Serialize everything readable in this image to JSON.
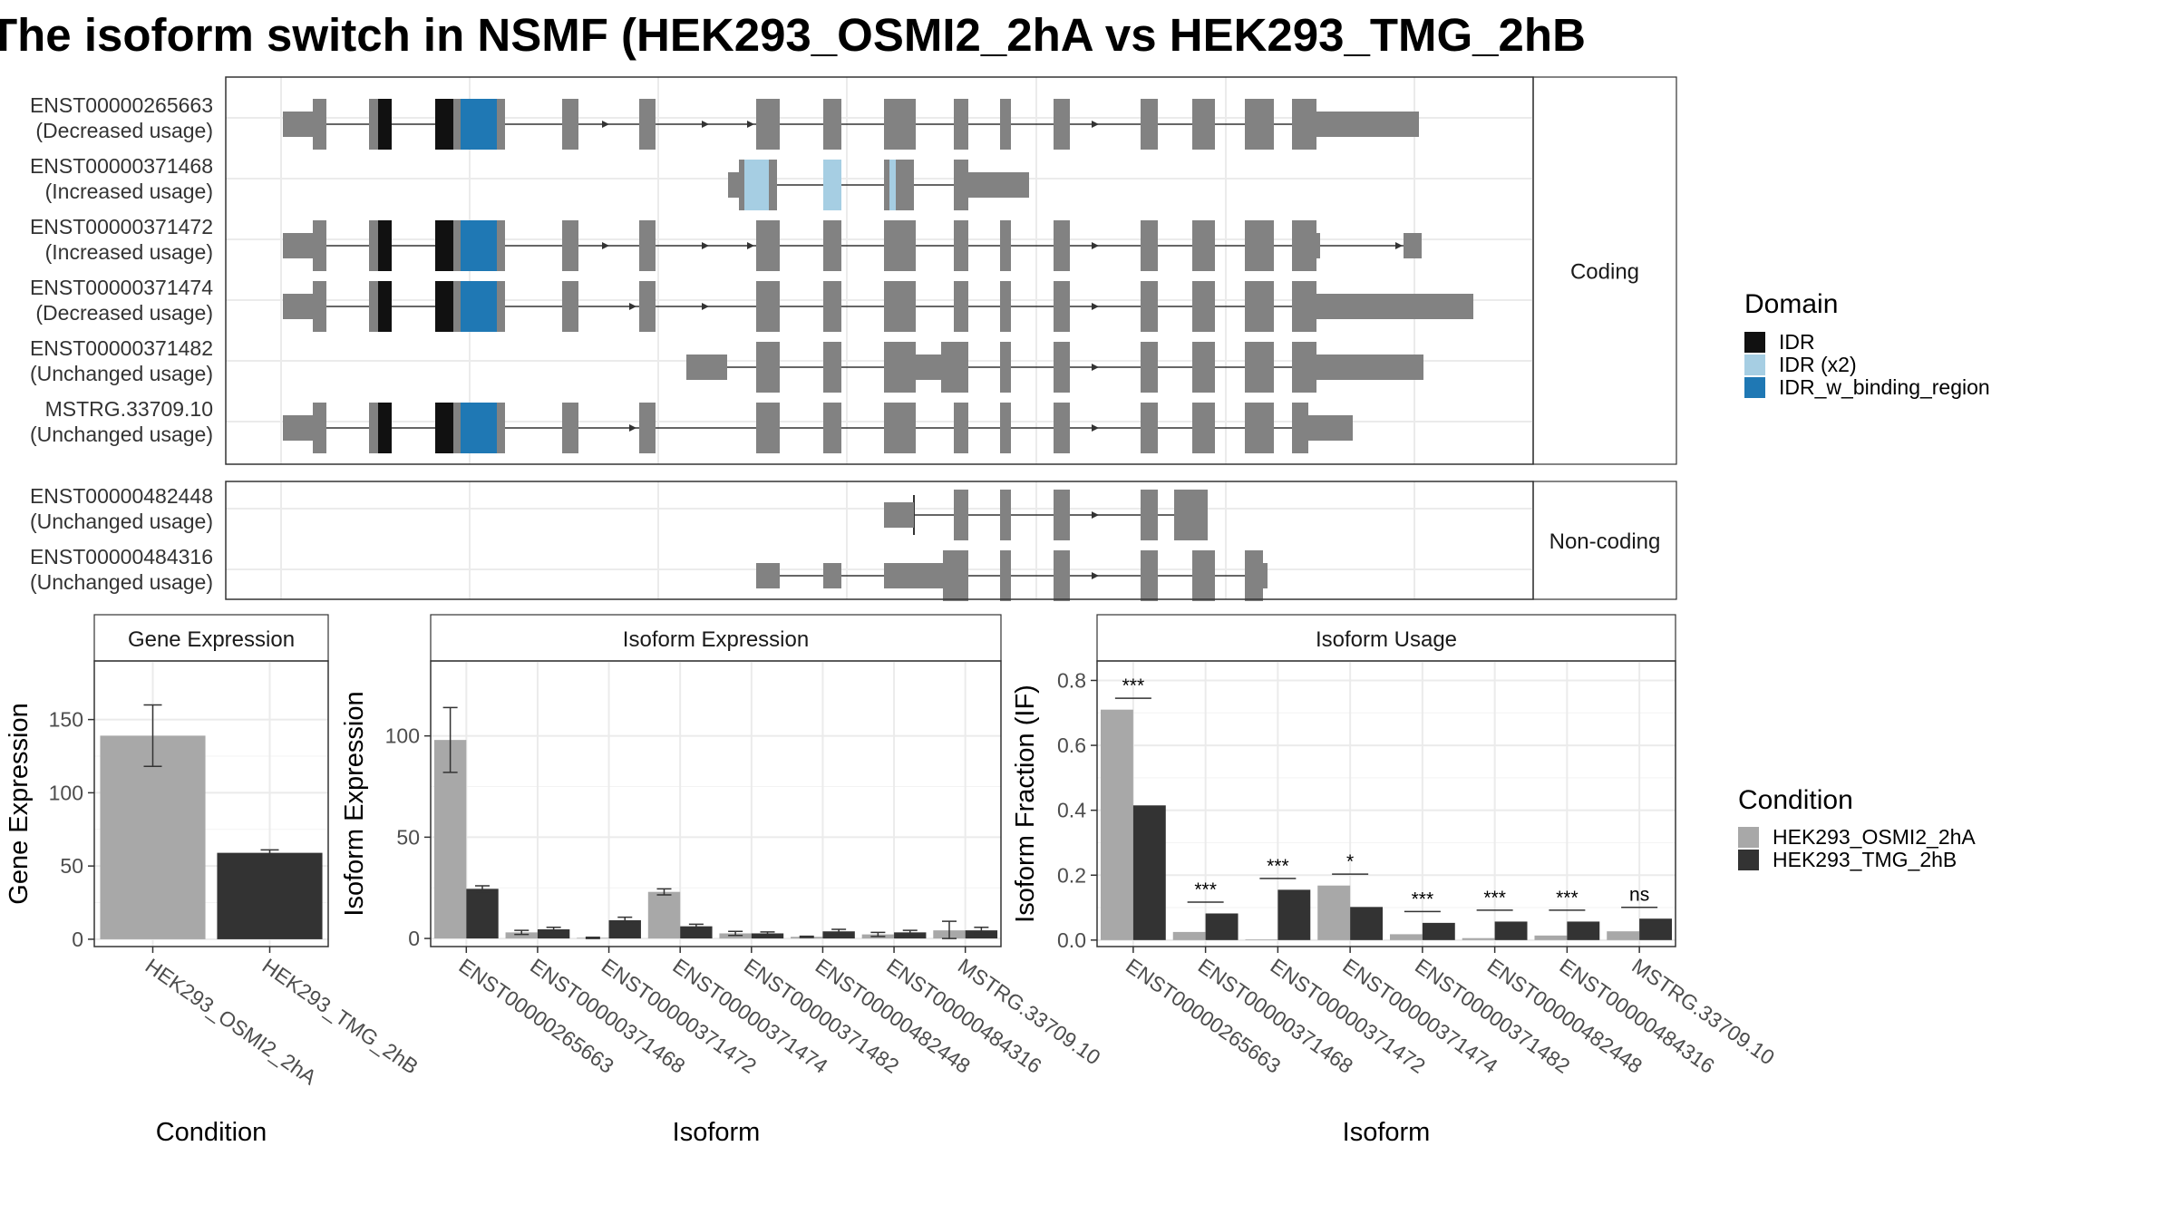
{
  "title": "The isoform switch in NSMF (HEK293_OSMI2_2hA vs HEK293_TMG_2hB",
  "colors": {
    "exon": "#828282",
    "IDR": "#111111",
    "IDR (x2)": "#a6cee3",
    "IDR_w_binding_region": "#1f78b4",
    "cond1": "#a8a8a8",
    "cond2": "#333333",
    "grid": "#ebebeb"
  },
  "transcripts": {
    "coding_label": "Coding",
    "noncoding_label": "Non-coding",
    "coding": [
      {
        "id": "ENST00000265663",
        "usage": "(Decreased usage)"
      },
      {
        "id": "ENST00000371468",
        "usage": "(Increased usage)"
      },
      {
        "id": "ENST00000371472",
        "usage": "(Increased usage)"
      },
      {
        "id": "ENST00000371474",
        "usage": "(Decreased usage)"
      },
      {
        "id": "ENST00000371482",
        "usage": "(Unchanged usage)"
      },
      {
        "id": "MSTRG.33709.10",
        "usage": "(Unchanged usage)"
      }
    ],
    "noncoding": [
      {
        "id": "ENST00000482448",
        "usage": "(Unchanged usage)"
      },
      {
        "id": "ENST00000484316",
        "usage": "(Unchanged usage)"
      }
    ]
  },
  "domain_legend": {
    "title": "Domain",
    "items": [
      "IDR",
      "IDR (x2)",
      "IDR_w_binding_region"
    ]
  },
  "condition_legend": {
    "title": "Condition",
    "items": [
      "HEK293_OSMI2_2hA",
      "HEK293_TMG_2hB"
    ]
  },
  "chart_data": [
    {
      "type": "bar",
      "title": "Gene Expression",
      "xlabel": "Condition",
      "ylabel": "Gene Expression",
      "categories": [
        "HEK293_OSMI2_2hA",
        "HEK293_TMG_2hB"
      ],
      "values": [
        139,
        59
      ],
      "error": [
        [
          118,
          160
        ],
        [
          57,
          61
        ]
      ],
      "ylim": [
        -5,
        190
      ],
      "yticks": [
        0,
        50,
        100,
        150
      ]
    },
    {
      "type": "bar",
      "title": "Isoform Expression",
      "xlabel": "Isoform",
      "ylabel": "Isoform Expression",
      "categories": [
        "ENST00000265663",
        "ENST00000371468",
        "ENST00000371472",
        "ENST00000371474",
        "ENST00000371482",
        "ENST00000482448",
        "ENST00000484316",
        "MSTRG.33709.10"
      ],
      "series": [
        {
          "name": "HEK293_OSMI2_2hA",
          "values": [
            98,
            3,
            0.3,
            23,
            2.5,
            0.8,
            2,
            4
          ],
          "error": [
            [
              82,
              114
            ],
            [
              2,
              4
            ],
            [
              0,
              0.6
            ],
            [
              21.5,
              24.5
            ],
            [
              1.5,
              3.5
            ],
            [
              0.5,
              1.1
            ],
            [
              1,
              3
            ],
            [
              0,
              8.5
            ]
          ]
        },
        {
          "name": "HEK293_TMG_2hB",
          "values": [
            24.5,
            4.5,
            9,
            6,
            2.5,
            3.5,
            3,
            4
          ],
          "error": [
            [
              23,
              26
            ],
            [
              3.5,
              5.5
            ],
            [
              7.5,
              10.5
            ],
            [
              5,
              7
            ],
            [
              1.8,
              3.2
            ],
            [
              2.5,
              4.5
            ],
            [
              2,
              4
            ],
            [
              2.5,
              5.5
            ]
          ]
        }
      ],
      "ylim": [
        -4,
        137
      ],
      "yticks": [
        0,
        50,
        100
      ]
    },
    {
      "type": "bar",
      "title": "Isoform Usage",
      "xlabel": "Isoform",
      "ylabel": "Isoform Fraction (IF)",
      "categories": [
        "ENST00000265663",
        "ENST00000371468",
        "ENST00000371472",
        "ENST00000371474",
        "ENST00000371482",
        "ENST00000482448",
        "ENST00000484316",
        "MSTRG.33709.10"
      ],
      "series": [
        {
          "name": "HEK293_OSMI2_2hA",
          "values": [
            0.71,
            0.025,
            0.002,
            0.168,
            0.018,
            0.006,
            0.014,
            0.027
          ]
        },
        {
          "name": "HEK293_TMG_2hB",
          "values": [
            0.415,
            0.082,
            0.155,
            0.102,
            0.053,
            0.057,
            0.057,
            0.066
          ]
        }
      ],
      "significance": [
        "***",
        "***",
        "***",
        "*",
        "***",
        "***",
        "***",
        "ns"
      ],
      "ylim": [
        -0.02,
        0.86
      ],
      "yticks": [
        0.0,
        0.2,
        0.4,
        0.6,
        0.8
      ]
    }
  ]
}
